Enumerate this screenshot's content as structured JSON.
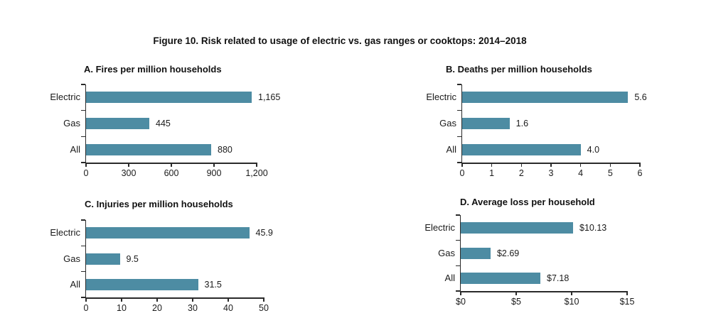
{
  "page_title": "Figure 10. Risk related to usage of electric vs. gas ranges or cooktops: 2014–2018",
  "colors": {
    "bar_fill": "#4d8ca3",
    "axis": "#2a2a2a",
    "text": "#1a1a1a",
    "background": "#ffffff"
  },
  "chart_data": [
    {
      "id": "A",
      "type": "bar",
      "orientation": "horizontal",
      "title": "A. Fires per million households",
      "categories": [
        "Electric",
        "Gas",
        "All"
      ],
      "values": [
        1165,
        445,
        880
      ],
      "value_labels": [
        "1,165",
        "445",
        "880"
      ],
      "xlim": [
        0,
        1200
      ],
      "xticks": [
        0,
        300,
        600,
        900,
        1200
      ],
      "xtick_labels": [
        "0",
        "300",
        "600",
        "900",
        "1,200"
      ],
      "grid": false,
      "legend": null
    },
    {
      "id": "B",
      "type": "bar",
      "orientation": "horizontal",
      "title": "B. Deaths per million households",
      "categories": [
        "Electric",
        "Gas",
        "All"
      ],
      "values": [
        5.6,
        1.6,
        4.0
      ],
      "value_labels": [
        "5.6",
        "1.6",
        "4.0"
      ],
      "xlim": [
        0,
        6
      ],
      "xticks": [
        0,
        1,
        2,
        3,
        4,
        5,
        6
      ],
      "xtick_labels": [
        "0",
        "1",
        "2",
        "3",
        "4",
        "5",
        "6"
      ],
      "grid": false,
      "legend": null
    },
    {
      "id": "C",
      "type": "bar",
      "orientation": "horizontal",
      "title": "C. Injuries per million households",
      "categories": [
        "Electric",
        "Gas",
        "All"
      ],
      "values": [
        45.9,
        9.5,
        31.5
      ],
      "value_labels": [
        "45.9",
        "9.5",
        "31.5"
      ],
      "xlim": [
        0,
        50
      ],
      "xticks": [
        0,
        10,
        20,
        30,
        40,
        50
      ],
      "xtick_labels": [
        "0",
        "10",
        "20",
        "30",
        "40",
        "50"
      ],
      "grid": false,
      "legend": null
    },
    {
      "id": "D",
      "type": "bar",
      "orientation": "horizontal",
      "title": "D. Average loss per household",
      "categories": [
        "Electric",
        "Gas",
        "All"
      ],
      "values": [
        10.13,
        2.69,
        7.18
      ],
      "value_labels": [
        "$10.13",
        "$2.69",
        "$7.18"
      ],
      "xlim": [
        0,
        15
      ],
      "xticks": [
        0,
        5,
        10,
        15
      ],
      "xtick_labels": [
        "$0",
        "$5",
        "$10",
        "$15"
      ],
      "grid": false,
      "legend": null
    }
  ]
}
